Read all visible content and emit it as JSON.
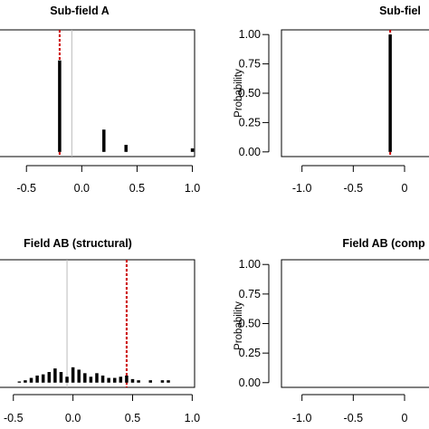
{
  "chart_data": [
    {
      "type": "bar",
      "title": "Sub-field A",
      "xlim": [
        -0.78,
        1.02
      ],
      "ylim": [
        -0.04,
        1.04
      ],
      "xticks": [
        -0.5,
        0.0,
        0.5,
        1.0
      ],
      "xtick_labels": [
        "-0.5",
        "0.0",
        "0.5",
        "1.0"
      ],
      "yticks": [],
      "ylabel": "",
      "reference_line": -0.09,
      "reference_line_color": "#bbbbbb",
      "estimate_line": -0.2,
      "estimate_line_color": "#cc0000",
      "x": [
        -0.2,
        0.2,
        0.4,
        1.0
      ],
      "values": [
        0.78,
        0.19,
        0.06,
        0.03
      ]
    },
    {
      "type": "bar",
      "title": "Sub-fiel",
      "xlim": [
        -1.2,
        0.3
      ],
      "ylim": [
        -0.04,
        1.04
      ],
      "xticks": [
        -1.0,
        -0.5,
        0.0
      ],
      "xtick_labels": [
        "-1.0",
        "-0.5",
        "0"
      ],
      "yticks": [
        0.0,
        0.25,
        0.5,
        0.75,
        1.0
      ],
      "ytick_labels": [
        "0.00",
        "0.25",
        "0.50",
        "0.75",
        "1.00"
      ],
      "ylabel": "Probability",
      "estimate_line": -0.14,
      "estimate_line_color": "#cc0000",
      "x": [
        -0.14
      ],
      "values": [
        1.0
      ]
    },
    {
      "type": "bar",
      "title": "Field AB (structural)",
      "xlim": [
        -0.65,
        1.02
      ],
      "ylim": [
        -0.04,
        1.04
      ],
      "xticks": [
        -0.5,
        0.0,
        0.5,
        1.0
      ],
      "xtick_labels": [
        "-0.5",
        "0.0",
        "0.5",
        "1.0"
      ],
      "yticks": [],
      "ylabel": "",
      "reference_line": -0.05,
      "reference_line_color": "#bbbbbb",
      "estimate_line": 0.45,
      "estimate_line_color": "#cc0000",
      "x": [
        -0.45,
        -0.4,
        -0.35,
        -0.3,
        -0.25,
        -0.2,
        -0.15,
        -0.1,
        -0.05,
        0.0,
        0.05,
        0.1,
        0.15,
        0.2,
        0.25,
        0.3,
        0.35,
        0.4,
        0.45,
        0.5,
        0.55,
        0.65,
        0.75,
        0.8
      ],
      "values": [
        0.01,
        0.02,
        0.04,
        0.06,
        0.07,
        0.09,
        0.12,
        0.09,
        0.05,
        0.13,
        0.11,
        0.08,
        0.05,
        0.08,
        0.06,
        0.04,
        0.04,
        0.05,
        0.06,
        0.03,
        0.02,
        0.02,
        0.02,
        0.02
      ]
    },
    {
      "type": "bar",
      "title": "Field AB (comp",
      "xlim": [
        -1.2,
        0.3
      ],
      "ylim": [
        -0.04,
        1.04
      ],
      "xticks": [
        -1.0,
        -0.5,
        0.0
      ],
      "xtick_labels": [
        "-1.0",
        "-0.5",
        "0"
      ],
      "yticks": [
        0.0,
        0.25,
        0.5,
        0.75,
        1.0
      ],
      "ytick_labels": [
        "0.00",
        "0.25",
        "0.50",
        "0.75",
        "1.00"
      ],
      "ylabel": "Probability",
      "x": [],
      "values": []
    }
  ]
}
